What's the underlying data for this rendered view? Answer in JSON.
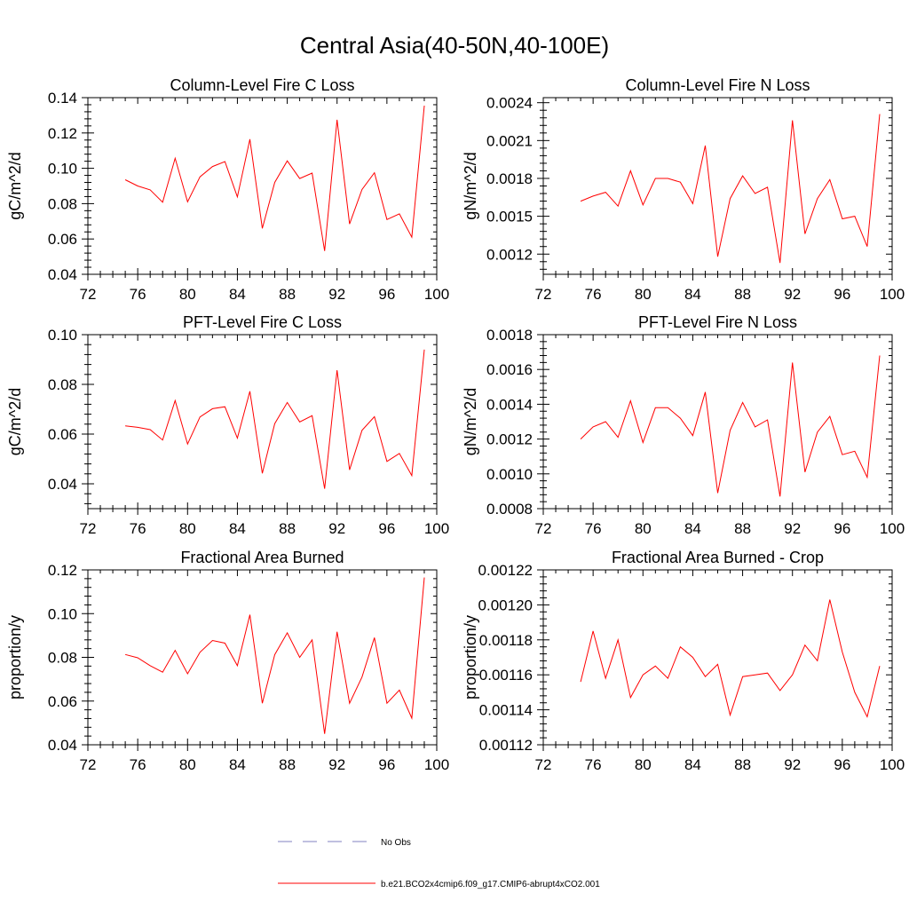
{
  "figure_title": "Central Asia(40-50N,40-100E)",
  "colors": {
    "series": "#ff0000",
    "obs": "#8080c0",
    "axis": "#000000"
  },
  "legend": [
    {
      "label": "No Obs",
      "style": "dashed",
      "color": "#8080c0"
    },
    {
      "label": "b.e21.BCO2x4cmip6.f09_g17.CMIP6-abrupt4xCO2.001",
      "style": "solid",
      "color": "#ff0000"
    }
  ],
  "chart_data": [
    {
      "type": "line",
      "title": "Column-Level Fire C Loss",
      "xlabel": "",
      "ylabel": "gC/m^2/d",
      "xlim": [
        72,
        100
      ],
      "ylim": [
        0.04,
        0.14
      ],
      "xticks": [
        "72",
        "76",
        "80",
        "84",
        "88",
        "92",
        "96",
        "100"
      ],
      "yticks": [
        "0.04",
        "0.06",
        "0.08",
        "0.10",
        "0.12",
        "0.14"
      ],
      "x": [
        75,
        76,
        77,
        78,
        79,
        80,
        81,
        82,
        83,
        84,
        85,
        86,
        87,
        88,
        89,
        90,
        91,
        92,
        93,
        94,
        95,
        96,
        97,
        98,
        99
      ],
      "series": [
        {
          "name": "b.e21.BCO2x4cmip6.f09_g17.CMIP6-abrupt4xCO2.001",
          "values": [
            0.0935,
            0.09,
            0.0878,
            0.0808,
            0.1057,
            0.081,
            0.0952,
            0.101,
            0.1038,
            0.0838,
            0.1165,
            0.066,
            0.092,
            0.1042,
            0.0942,
            0.0973,
            0.0532,
            0.1275,
            0.0685,
            0.088,
            0.0975,
            0.071,
            0.0742,
            0.061,
            0.1355
          ]
        }
      ]
    },
    {
      "type": "line",
      "title": "Column-Level Fire N Loss",
      "xlabel": "",
      "ylabel": "gN/m^2/d",
      "xlim": [
        72,
        100
      ],
      "ylim": [
        0.00104,
        0.00244
      ],
      "xticks": [
        "72",
        "76",
        "80",
        "84",
        "88",
        "92",
        "96",
        "100"
      ],
      "yticks": [
        "0.0012",
        "0.0015",
        "0.0018",
        "0.0021",
        "0.0024"
      ],
      "ytick_values": [
        0.0012,
        0.0015,
        0.0018,
        0.0021,
        0.0024
      ],
      "x": [
        75,
        76,
        77,
        78,
        79,
        80,
        81,
        82,
        83,
        84,
        85,
        86,
        87,
        88,
        89,
        90,
        91,
        92,
        93,
        94,
        95,
        96,
        97,
        98,
        99
      ],
      "series": [
        {
          "name": "b.e21.BCO2x4cmip6.f09_g17.CMIP6-abrupt4xCO2.001",
          "values": [
            0.00162,
            0.00166,
            0.00169,
            0.00158,
            0.00186,
            0.00159,
            0.0018,
            0.0018,
            0.00177,
            0.0016,
            0.00206,
            0.00118,
            0.00164,
            0.00182,
            0.00168,
            0.00173,
            0.00113,
            0.00226,
            0.00136,
            0.00164,
            0.00179,
            0.00148,
            0.0015,
            0.00126,
            0.00231
          ]
        }
      ]
    },
    {
      "type": "line",
      "title": "PFT-Level Fire C Loss",
      "xlabel": "",
      "ylabel": "gC/m^2/d",
      "xlim": [
        72,
        100
      ],
      "ylim": [
        0.03,
        0.1
      ],
      "xticks": [
        "72",
        "76",
        "80",
        "84",
        "88",
        "92",
        "96",
        "100"
      ],
      "yticks": [
        "0.04",
        "0.06",
        "0.08",
        "0.10"
      ],
      "ytick_values": [
        0.04,
        0.06,
        0.08,
        0.1
      ],
      "x": [
        75,
        76,
        77,
        78,
        79,
        80,
        81,
        82,
        83,
        84,
        85,
        86,
        87,
        88,
        89,
        90,
        91,
        92,
        93,
        94,
        95,
        96,
        97,
        98,
        99
      ],
      "series": [
        {
          "name": "b.e21.BCO2x4cmip6.f09_g17.CMIP6-abrupt4xCO2.001",
          "values": [
            0.0633,
            0.0627,
            0.0618,
            0.0576,
            0.0735,
            0.056,
            0.0669,
            0.0702,
            0.071,
            0.0584,
            0.0772,
            0.0442,
            0.0642,
            0.0727,
            0.0649,
            0.0674,
            0.038,
            0.0857,
            0.0456,
            0.0615,
            0.067,
            0.049,
            0.0522,
            0.0433,
            0.094
          ]
        }
      ]
    },
    {
      "type": "line",
      "title": "PFT-Level Fire N Loss",
      "xlabel": "",
      "ylabel": "gN/m^2/d",
      "xlim": [
        72,
        100
      ],
      "ylim": [
        0.0008,
        0.0018
      ],
      "xticks": [
        "72",
        "76",
        "80",
        "84",
        "88",
        "92",
        "96",
        "100"
      ],
      "yticks": [
        "0.0008",
        "0.0010",
        "0.0012",
        "0.0014",
        "0.0016",
        "0.0018"
      ],
      "x": [
        75,
        76,
        77,
        78,
        79,
        80,
        81,
        82,
        83,
        84,
        85,
        86,
        87,
        88,
        89,
        90,
        91,
        92,
        93,
        94,
        95,
        96,
        97,
        98,
        99
      ],
      "series": [
        {
          "name": "b.e21.BCO2x4cmip6.f09_g17.CMIP6-abrupt4xCO2.001",
          "values": [
            0.0012,
            0.00127,
            0.0013,
            0.00121,
            0.00142,
            0.00118,
            0.00138,
            0.00138,
            0.00132,
            0.00122,
            0.00147,
            0.00089,
            0.00125,
            0.00141,
            0.00127,
            0.00131,
            0.00087,
            0.00164,
            0.00101,
            0.00124,
            0.00133,
            0.00111,
            0.00113,
            0.00098,
            0.00168
          ]
        }
      ]
    },
    {
      "type": "line",
      "title": "Fractional Area Burned",
      "xlabel": "",
      "ylabel": "proportion/y",
      "xlim": [
        72,
        100
      ],
      "ylim": [
        0.04,
        0.12
      ],
      "xticks": [
        "72",
        "76",
        "80",
        "84",
        "88",
        "92",
        "96",
        "100"
      ],
      "yticks": [
        "0.04",
        "0.06",
        "0.08",
        "0.10",
        "0.12"
      ],
      "x": [
        75,
        76,
        77,
        78,
        79,
        80,
        81,
        82,
        83,
        84,
        85,
        86,
        87,
        88,
        89,
        90,
        91,
        92,
        93,
        94,
        95,
        96,
        97,
        98,
        99
      ],
      "series": [
        {
          "name": "b.e21.BCO2x4cmip6.f09_g17.CMIP6-abrupt4xCO2.001",
          "values": [
            0.0813,
            0.0798,
            0.0762,
            0.0732,
            0.0832,
            0.0725,
            0.0823,
            0.0877,
            0.0865,
            0.0762,
            0.0995,
            0.059,
            0.0812,
            0.0912,
            0.08,
            0.088,
            0.045,
            0.0917,
            0.059,
            0.071,
            0.089,
            0.059,
            0.065,
            0.0522,
            0.1165
          ]
        }
      ]
    },
    {
      "type": "line",
      "title": "Fractional Area Burned - Crop",
      "xlabel": "",
      "ylabel": "proportion/y",
      "xlim": [
        72,
        100
      ],
      "ylim": [
        0.00112,
        0.00122
      ],
      "xticks": [
        "72",
        "76",
        "80",
        "84",
        "88",
        "92",
        "96",
        "100"
      ],
      "yticks": [
        "0.00112",
        "0.00114",
        "0.00116",
        "0.00118",
        "0.00120",
        "0.00122"
      ],
      "x": [
        75,
        76,
        77,
        78,
        79,
        80,
        81,
        82,
        83,
        84,
        85,
        86,
        87,
        88,
        89,
        90,
        91,
        92,
        93,
        94,
        95,
        96,
        97,
        98,
        99
      ],
      "series": [
        {
          "name": "b.e21.BCO2x4cmip6.f09_g17.CMIP6-abrupt4xCO2.001",
          "values": [
            0.001156,
            0.001185,
            0.001158,
            0.00118,
            0.001147,
            0.00116,
            0.001165,
            0.001158,
            0.001176,
            0.00117,
            0.001159,
            0.001166,
            0.001137,
            0.001159,
            0.00116,
            0.001161,
            0.001151,
            0.00116,
            0.001177,
            0.001168,
            0.001203,
            0.001173,
            0.00115,
            0.001136,
            0.001165
          ]
        }
      ]
    }
  ]
}
